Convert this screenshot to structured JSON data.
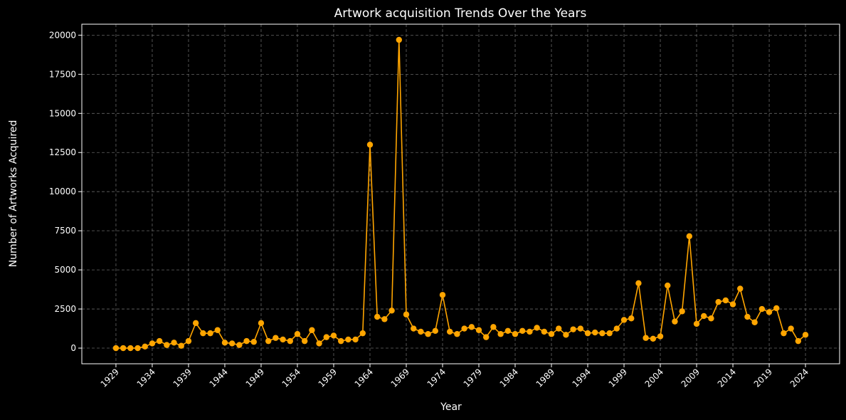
{
  "chart_data": {
    "type": "line",
    "title": "Artwork acquisition Trends Over the Years",
    "xlabel": "Year",
    "ylabel": "Number of Artworks Acquired",
    "xlim": [
      1924.3,
      2028.7
    ],
    "ylim": [
      -1000,
      20700
    ],
    "x_ticks": [
      1929,
      1934,
      1939,
      1944,
      1949,
      1954,
      1959,
      1964,
      1969,
      1974,
      1979,
      1984,
      1989,
      1994,
      1999,
      2004,
      2009,
      2014,
      2019,
      2024
    ],
    "y_ticks": [
      0,
      2500,
      5000,
      7500,
      10000,
      12500,
      15000,
      17500,
      20000
    ],
    "grid": true,
    "color": "#ffa500",
    "marker": "circle",
    "series": [
      {
        "x": [
          1929,
          1930,
          1931,
          1932,
          1933,
          1934,
          1935,
          1936,
          1937,
          1938,
          1939,
          1940,
          1941,
          1942,
          1943,
          1944,
          1945,
          1946,
          1947,
          1948,
          1949,
          1950,
          1951,
          1952,
          1953,
          1954,
          1955,
          1956,
          1957,
          1958,
          1959,
          1960,
          1961,
          1962,
          1963,
          1964,
          1965,
          1966,
          1967,
          1968,
          1969,
          1970,
          1971,
          1972,
          1973,
          1974,
          1975,
          1976,
          1977,
          1978,
          1979,
          1980,
          1981,
          1982,
          1983,
          1984,
          1985,
          1986,
          1987,
          1988,
          1989,
          1990,
          1991,
          1992,
          1993,
          1994,
          1995,
          1996,
          1997,
          1998,
          1999,
          2000,
          2001,
          2002,
          2003,
          2004,
          2005,
          2006,
          2007,
          2008,
          2009,
          2010,
          2011,
          2012,
          2013,
          2014,
          2015,
          2016,
          2017,
          2018,
          2019,
          2020,
          2021,
          2022,
          2023,
          2024
        ],
        "y": [
          0,
          0,
          0,
          0,
          100,
          300,
          450,
          200,
          350,
          150,
          450,
          1600,
          950,
          950,
          1150,
          350,
          300,
          200,
          450,
          400,
          1600,
          450,
          650,
          550,
          450,
          900,
          450,
          1150,
          300,
          700,
          800,
          450,
          550,
          550,
          950,
          13000,
          2000,
          1850,
          2400,
          19700,
          2150,
          1250,
          1050,
          900,
          1100,
          3400,
          1050,
          900,
          1250,
          1350,
          1150,
          700,
          1350,
          900,
          1100,
          900,
          1100,
          1050,
          1300,
          1050,
          900,
          1250,
          850,
          1200,
          1250,
          950,
          1000,
          950,
          950,
          1250,
          1800,
          1900,
          4150,
          650,
          600,
          750,
          4000,
          1700,
          2350,
          7150,
          1550,
          2050,
          1900,
          2950,
          3050,
          2800,
          3800,
          2000,
          1650,
          2500,
          2300,
          2550,
          950,
          1250,
          450,
          850
        ]
      }
    ]
  }
}
